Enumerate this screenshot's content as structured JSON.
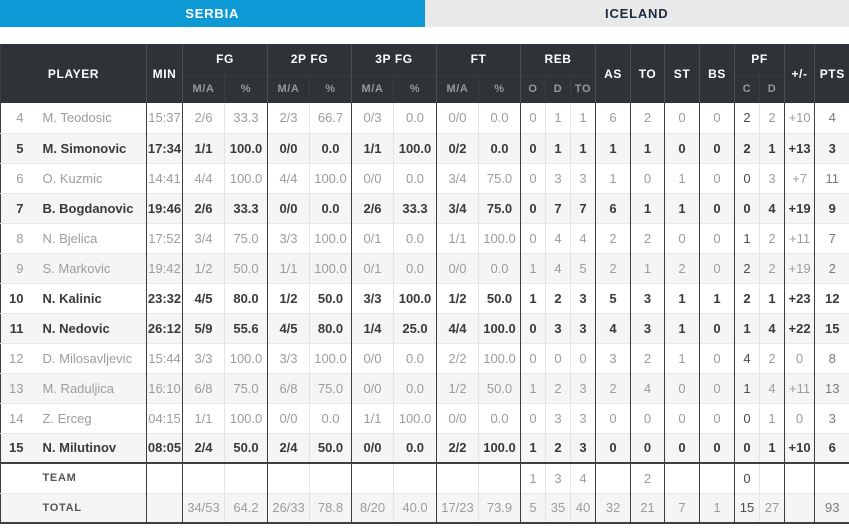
{
  "tabs": [
    {
      "label": "SERBIA",
      "active": true
    },
    {
      "label": "ICELAND",
      "active": false
    }
  ],
  "colors": {
    "accent_blue": "#0D99D6",
    "tab_inactive_bg": "#E9E9E9",
    "tab_inactive_text": "#1A2B3C",
    "header_bg": "#2F3237",
    "header_text": "#FFFFFF",
    "header_subtext": "#97999C",
    "row_alt_bg": "#F5F5F5",
    "text_gray": "#9C9C9C",
    "text_dark": "#3A3A3A",
    "border_dark": "#3E3E3E",
    "border_light": "#E3E3E3"
  },
  "header": {
    "player": "PLAYER",
    "min": "MIN",
    "fg": "FG",
    "fg2": "2P FG",
    "fg3": "3P FG",
    "ft": "FT",
    "reb": "REB",
    "as": "AS",
    "to": "TO",
    "st": "ST",
    "bs": "BS",
    "pf": "PF",
    "plus_minus": "+/-",
    "pts": "PTS",
    "ma": "M/A",
    "pct": "%",
    "reb_o": "O",
    "reb_d": "D",
    "reb_t": "TO",
    "pf_c": "C",
    "pf_d": "D"
  },
  "rows": [
    {
      "num": "4",
      "name": "M. Teodosic",
      "min": "15:37",
      "fg_ma": "2/6",
      "fg_pct": "33.3",
      "p2_ma": "2/3",
      "p2_pct": "66.7",
      "p3_ma": "0/3",
      "p3_pct": "0.0",
      "ft_ma": "0/0",
      "ft_pct": "0.0",
      "reb_o": "0",
      "reb_d": "1",
      "reb_t": "1",
      "as": "6",
      "to": "2",
      "st": "0",
      "bs": "0",
      "pf_c": "2",
      "pf_d": "2",
      "pm": "+10",
      "pts": "4",
      "on_court": false
    },
    {
      "num": "5",
      "name": "M. Simonovic",
      "min": "17:34",
      "fg_ma": "1/1",
      "fg_pct": "100.0",
      "p2_ma": "0/0",
      "p2_pct": "0.0",
      "p3_ma": "1/1",
      "p3_pct": "100.0",
      "ft_ma": "0/2",
      "ft_pct": "0.0",
      "reb_o": "0",
      "reb_d": "1",
      "reb_t": "1",
      "as": "1",
      "to": "1",
      "st": "0",
      "bs": "0",
      "pf_c": "2",
      "pf_d": "1",
      "pm": "+13",
      "pts": "3",
      "on_court": true
    },
    {
      "num": "6",
      "name": "O. Kuzmic",
      "min": "14:41",
      "fg_ma": "4/4",
      "fg_pct": "100.0",
      "p2_ma": "4/4",
      "p2_pct": "100.0",
      "p3_ma": "0/0",
      "p3_pct": "0.0",
      "ft_ma": "3/4",
      "ft_pct": "75.0",
      "reb_o": "0",
      "reb_d": "3",
      "reb_t": "3",
      "as": "1",
      "to": "0",
      "st": "1",
      "bs": "0",
      "pf_c": "0",
      "pf_d": "3",
      "pm": "+7",
      "pts": "11",
      "on_court": false
    },
    {
      "num": "7",
      "name": "B. Bogdanovic",
      "min": "19:46",
      "fg_ma": "2/6",
      "fg_pct": "33.3",
      "p2_ma": "0/0",
      "p2_pct": "0.0",
      "p3_ma": "2/6",
      "p3_pct": "33.3",
      "ft_ma": "3/4",
      "ft_pct": "75.0",
      "reb_o": "0",
      "reb_d": "7",
      "reb_t": "7",
      "as": "6",
      "to": "1",
      "st": "1",
      "bs": "0",
      "pf_c": "0",
      "pf_d": "4",
      "pm": "+19",
      "pts": "9",
      "on_court": true
    },
    {
      "num": "8",
      "name": "N. Bjelica",
      "min": "17:52",
      "fg_ma": "3/4",
      "fg_pct": "75.0",
      "p2_ma": "3/3",
      "p2_pct": "100.0",
      "p3_ma": "0/1",
      "p3_pct": "0.0",
      "ft_ma": "1/1",
      "ft_pct": "100.0",
      "reb_o": "0",
      "reb_d": "4",
      "reb_t": "4",
      "as": "2",
      "to": "2",
      "st": "0",
      "bs": "0",
      "pf_c": "1",
      "pf_d": "2",
      "pm": "+11",
      "pts": "7",
      "on_court": false
    },
    {
      "num": "9",
      "name": "S. Markovic",
      "min": "19:42",
      "fg_ma": "1/2",
      "fg_pct": "50.0",
      "p2_ma": "1/1",
      "p2_pct": "100.0",
      "p3_ma": "0/1",
      "p3_pct": "0.0",
      "ft_ma": "0/0",
      "ft_pct": "0.0",
      "reb_o": "1",
      "reb_d": "4",
      "reb_t": "5",
      "as": "2",
      "to": "1",
      "st": "2",
      "bs": "0",
      "pf_c": "2",
      "pf_d": "2",
      "pm": "+19",
      "pts": "2",
      "on_court": false
    },
    {
      "num": "10",
      "name": "N. Kalinic",
      "min": "23:32",
      "fg_ma": "4/5",
      "fg_pct": "80.0",
      "p2_ma": "1/2",
      "p2_pct": "50.0",
      "p3_ma": "3/3",
      "p3_pct": "100.0",
      "ft_ma": "1/2",
      "ft_pct": "50.0",
      "reb_o": "1",
      "reb_d": "2",
      "reb_t": "3",
      "as": "5",
      "to": "3",
      "st": "1",
      "bs": "1",
      "pf_c": "2",
      "pf_d": "1",
      "pm": "+23",
      "pts": "12",
      "on_court": true
    },
    {
      "num": "11",
      "name": "N. Nedovic",
      "min": "26:12",
      "fg_ma": "5/9",
      "fg_pct": "55.6",
      "p2_ma": "4/5",
      "p2_pct": "80.0",
      "p3_ma": "1/4",
      "p3_pct": "25.0",
      "ft_ma": "4/4",
      "ft_pct": "100.0",
      "reb_o": "0",
      "reb_d": "3",
      "reb_t": "3",
      "as": "4",
      "to": "3",
      "st": "1",
      "bs": "0",
      "pf_c": "1",
      "pf_d": "4",
      "pm": "+22",
      "pts": "15",
      "on_court": true
    },
    {
      "num": "12",
      "name": "D. Milosavljevic",
      "min": "15:44",
      "fg_ma": "3/3",
      "fg_pct": "100.0",
      "p2_ma": "3/3",
      "p2_pct": "100.0",
      "p3_ma": "0/0",
      "p3_pct": "0.0",
      "ft_ma": "2/2",
      "ft_pct": "100.0",
      "reb_o": "0",
      "reb_d": "0",
      "reb_t": "0",
      "as": "3",
      "to": "2",
      "st": "1",
      "bs": "0",
      "pf_c": "4",
      "pf_d": "2",
      "pm": "0",
      "pts": "8",
      "on_court": false
    },
    {
      "num": "13",
      "name": "M. Raduljica",
      "min": "16:10",
      "fg_ma": "6/8",
      "fg_pct": "75.0",
      "p2_ma": "6/8",
      "p2_pct": "75.0",
      "p3_ma": "0/0",
      "p3_pct": "0.0",
      "ft_ma": "1/2",
      "ft_pct": "50.0",
      "reb_o": "1",
      "reb_d": "2",
      "reb_t": "3",
      "as": "2",
      "to": "4",
      "st": "0",
      "bs": "0",
      "pf_c": "1",
      "pf_d": "4",
      "pm": "+11",
      "pts": "13",
      "on_court": false
    },
    {
      "num": "14",
      "name": "Z. Erceg",
      "min": "04:15",
      "fg_ma": "1/1",
      "fg_pct": "100.0",
      "p2_ma": "0/0",
      "p2_pct": "0.0",
      "p3_ma": "1/1",
      "p3_pct": "100.0",
      "ft_ma": "0/0",
      "ft_pct": "0.0",
      "reb_o": "0",
      "reb_d": "3",
      "reb_t": "3",
      "as": "0",
      "to": "0",
      "st": "0",
      "bs": "0",
      "pf_c": "0",
      "pf_d": "1",
      "pm": "0",
      "pts": "3",
      "on_court": false
    },
    {
      "num": "15",
      "name": "N. Milutinov",
      "min": "08:05",
      "fg_ma": "2/4",
      "fg_pct": "50.0",
      "p2_ma": "2/4",
      "p2_pct": "50.0",
      "p3_ma": "0/0",
      "p3_pct": "0.0",
      "ft_ma": "2/2",
      "ft_pct": "100.0",
      "reb_o": "1",
      "reb_d": "2",
      "reb_t": "3",
      "as": "0",
      "to": "0",
      "st": "0",
      "bs": "0",
      "pf_c": "0",
      "pf_d": "1",
      "pm": "+10",
      "pts": "6",
      "on_court": true
    }
  ],
  "team_row": {
    "num": "",
    "name": "TEAM",
    "min": "",
    "fg_ma": "",
    "fg_pct": "",
    "p2_ma": "",
    "p2_pct": "",
    "p3_ma": "",
    "p3_pct": "",
    "ft_ma": "",
    "ft_pct": "",
    "reb_o": "1",
    "reb_d": "3",
    "reb_t": "4",
    "as": "",
    "to": "2",
    "st": "",
    "bs": "",
    "pf_c": "0",
    "pf_d": "",
    "pm": "",
    "pts": ""
  },
  "total_row": {
    "num": "",
    "name": "TOTAL",
    "min": "",
    "fg_ma": "34/53",
    "fg_pct": "64.2",
    "p2_ma": "26/33",
    "p2_pct": "78.8",
    "p3_ma": "8/20",
    "p3_pct": "40.0",
    "ft_ma": "17/23",
    "ft_pct": "73.9",
    "reb_o": "5",
    "reb_d": "35",
    "reb_t": "40",
    "as": "32",
    "to": "21",
    "st": "7",
    "bs": "1",
    "pf_c": "15",
    "pf_d": "27",
    "pm": "",
    "pts": "93"
  }
}
